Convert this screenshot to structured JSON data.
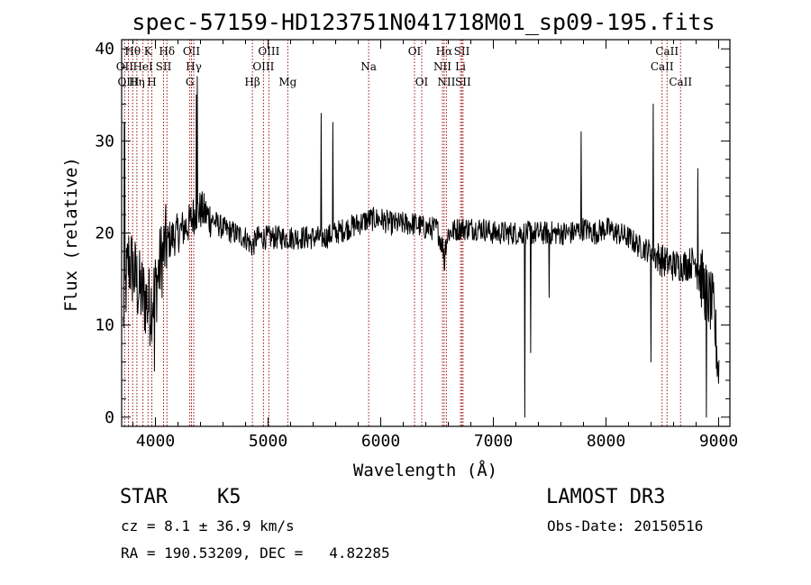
{
  "chart_data": {
    "type": "line",
    "title": "spec-57159-HD123751N041718M01_sp09-195.fits",
    "xlabel": "Wavelength (Å)",
    "ylabel": "Flux (relative)",
    "xlim": [
      3700,
      9100
    ],
    "ylim": [
      -1,
      41
    ],
    "xticks": [
      4000,
      5000,
      6000,
      7000,
      8000,
      9000
    ],
    "yticks": [
      0,
      10,
      20,
      30,
      40
    ],
    "spectrum_anchors": {
      "x": [
        3700,
        3720,
        3760,
        3800,
        3850,
        3900,
        3950,
        4000,
        4050,
        4100,
        4200,
        4300,
        4340,
        4400,
        4500,
        4600,
        4700,
        4800,
        4860,
        4900,
        5000,
        5100,
        5200,
        5300,
        5400,
        5500,
        5600,
        5700,
        5800,
        5900,
        6000,
        6100,
        6200,
        6300,
        6400,
        6500,
        6562,
        6600,
        6700,
        6800,
        6900,
        7000,
        7100,
        7200,
        7300,
        7400,
        7500,
        7600,
        7700,
        7800,
        7900,
        8000,
        8100,
        8200,
        8300,
        8400,
        8500,
        8600,
        8700,
        8800,
        8850,
        8900,
        8950,
        9000
      ],
      "y": [
        2,
        12,
        17,
        16,
        14,
        13,
        12,
        14,
        17,
        19,
        20,
        21,
        22,
        22.5,
        21.5,
        20.5,
        20,
        19.5,
        18.5,
        19.5,
        19.5,
        19.5,
        19.5,
        19.5,
        19.5,
        19.5,
        20,
        20.5,
        21,
        21.5,
        21.5,
        21,
        21,
        21,
        20.5,
        20.5,
        18,
        20,
        20.5,
        20.5,
        20.5,
        20,
        20,
        20,
        20,
        20,
        20,
        20,
        20,
        20.5,
        20,
        20.5,
        20,
        19.5,
        18.5,
        18,
        17,
        16.5,
        16.5,
        17,
        15,
        13,
        12,
        5
      ]
    },
    "spikes": [
      {
        "x": 3725,
        "y": 32
      },
      {
        "x": 4362,
        "y": 35
      },
      {
        "x": 4372,
        "y": 37
      },
      {
        "x": 5470,
        "y": 33
      },
      {
        "x": 5575,
        "y": 32
      },
      {
        "x": 7780,
        "y": 31
      },
      {
        "x": 8420,
        "y": 34
      },
      {
        "x": 8815,
        "y": 27
      },
      {
        "x": 7280,
        "y": 0
      },
      {
        "x": 7330,
        "y": 7
      },
      {
        "x": 7495,
        "y": 13
      },
      {
        "x": 8400,
        "y": 6
      },
      {
        "x": 8890,
        "y": 0
      },
      {
        "x": 3990,
        "y": 5
      },
      {
        "x": 6565,
        "y": 16
      }
    ],
    "emission_lines": [
      {
        "label": "Hθ",
        "x": 3798,
        "row": 1
      },
      {
        "label": "K",
        "x": 3934,
        "row": 1
      },
      {
        "label": "Hδ",
        "x": 4102,
        "row": 1
      },
      {
        "label": "OII",
        "x": 4320,
        "row": 1
      },
      {
        "label": "OIII",
        "x": 5007,
        "row": 1
      },
      {
        "label": "OI",
        "x": 6300,
        "row": 1
      },
      {
        "label": "Hα",
        "x": 6563,
        "row": 1
      },
      {
        "label": "SII",
        "x": 6720,
        "row": 1
      },
      {
        "label": "CaII",
        "x": 8542,
        "row": 1
      },
      {
        "label": "OII",
        "x": 3727,
        "row": 2
      },
      {
        "label": "HeI",
        "x": 3889,
        "row": 2
      },
      {
        "label": "SII",
        "x": 4072,
        "row": 2
      },
      {
        "label": "Hγ",
        "x": 4340,
        "row": 2
      },
      {
        "label": "OIII",
        "x": 4959,
        "row": 2
      },
      {
        "label": "Na",
        "x": 5893,
        "row": 2
      },
      {
        "label": "NII",
        "x": 6548,
        "row": 2
      },
      {
        "label": "Li",
        "x": 6708,
        "row": 2
      },
      {
        "label": "CaII",
        "x": 8498,
        "row": 2
      },
      {
        "label": "OIII",
        "x": 3760,
        "row": 3
      },
      {
        "label": "Hη",
        "x": 3835,
        "row": 3
      },
      {
        "label": "H",
        "x": 3968,
        "row": 3
      },
      {
        "label": "G",
        "x": 4305,
        "row": 3
      },
      {
        "label": "Hβ",
        "x": 4861,
        "row": 3
      },
      {
        "label": "Mg",
        "x": 5175,
        "row": 3
      },
      {
        "label": "OI",
        "x": 6364,
        "row": 3
      },
      {
        "label": "NII",
        "x": 6583,
        "row": 3
      },
      {
        "label": "SII",
        "x": 6731,
        "row": 3
      },
      {
        "label": "CaII",
        "x": 8662,
        "row": 3
      }
    ]
  },
  "info": {
    "object_class": "STAR",
    "subclass": "K5",
    "survey": "LAMOST DR3",
    "cz": "cz = 8.1 ± 36.9 km/s",
    "obs_date": "Obs-Date: 20150516",
    "coords": "RA = 190.53209, DEC =   4.82285"
  }
}
